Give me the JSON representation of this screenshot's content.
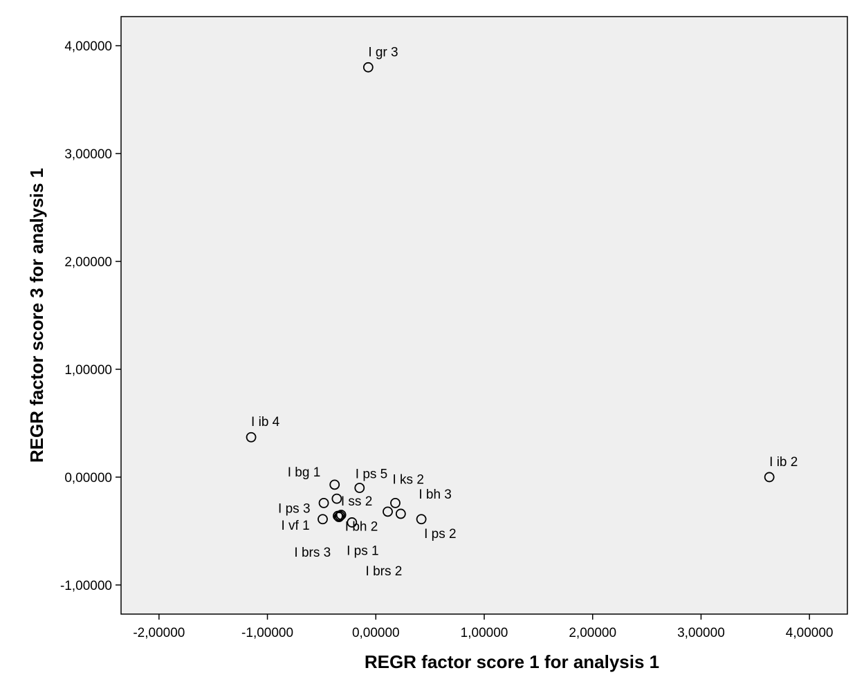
{
  "chart_data": {
    "type": "scatter",
    "title": "",
    "xlabel": "REGR factor score   1 for analysis 1",
    "ylabel": "REGR factor score   3 for analysis 1",
    "xlim": [
      -2.35,
      4.35
    ],
    "ylim": [
      -1.27,
      4.27
    ],
    "xticks": [
      -2,
      -1,
      0,
      1,
      2,
      3,
      4
    ],
    "yticks": [
      -1,
      0,
      1,
      2,
      3,
      4
    ],
    "xtick_labels": [
      "-2,00000",
      "-1,00000",
      "0,00000",
      "1,00000",
      "2,00000",
      "3,00000",
      "4,00000"
    ],
    "ytick_labels": [
      "-1,00000",
      "0,00000",
      "1,00000",
      "2,00000",
      "3,00000",
      "4,00000"
    ],
    "grid": false,
    "plot_background": "#efefef",
    "marker": "open-circle",
    "marker_color": "#000000",
    "points": [
      {
        "label": "I gr 3",
        "x": -0.07,
        "y": 3.8
      },
      {
        "label": "I ib 4",
        "x": -1.15,
        "y": 0.37
      },
      {
        "label": "I ib 2",
        "x": 3.63,
        "y": 0.0
      },
      {
        "label": "I bg 1",
        "x": -0.38,
        "y": -0.07
      },
      {
        "label": "I ps 5",
        "x": -0.15,
        "y": -0.1
      },
      {
        "label": "I ks 2",
        "x": 0.18,
        "y": -0.24
      },
      {
        "label": "I ps 3",
        "x": -0.48,
        "y": -0.24
      },
      {
        "label": "I ss 2",
        "x": -0.36,
        "y": -0.2
      },
      {
        "label": "I bh 3",
        "x": 0.23,
        "y": -0.34
      },
      {
        "label": "I vf 1",
        "x": -0.49,
        "y": -0.39
      },
      {
        "label": "I ps 2",
        "x": 0.42,
        "y": -0.39
      },
      {
        "label": "I bh 2",
        "x": -0.22,
        "y": -0.42
      },
      {
        "label": "I brs 3",
        "x": -0.35,
        "y": -0.36
      },
      {
        "label": "I ps 1",
        "x": -0.32,
        "y": -0.35
      },
      {
        "label": "I brs 2",
        "x": 0.11,
        "y": -0.32
      },
      {
        "label": "",
        "x": -0.34,
        "y": -0.37
      },
      {
        "label": "",
        "x": -0.33,
        "y": -0.36
      }
    ]
  }
}
